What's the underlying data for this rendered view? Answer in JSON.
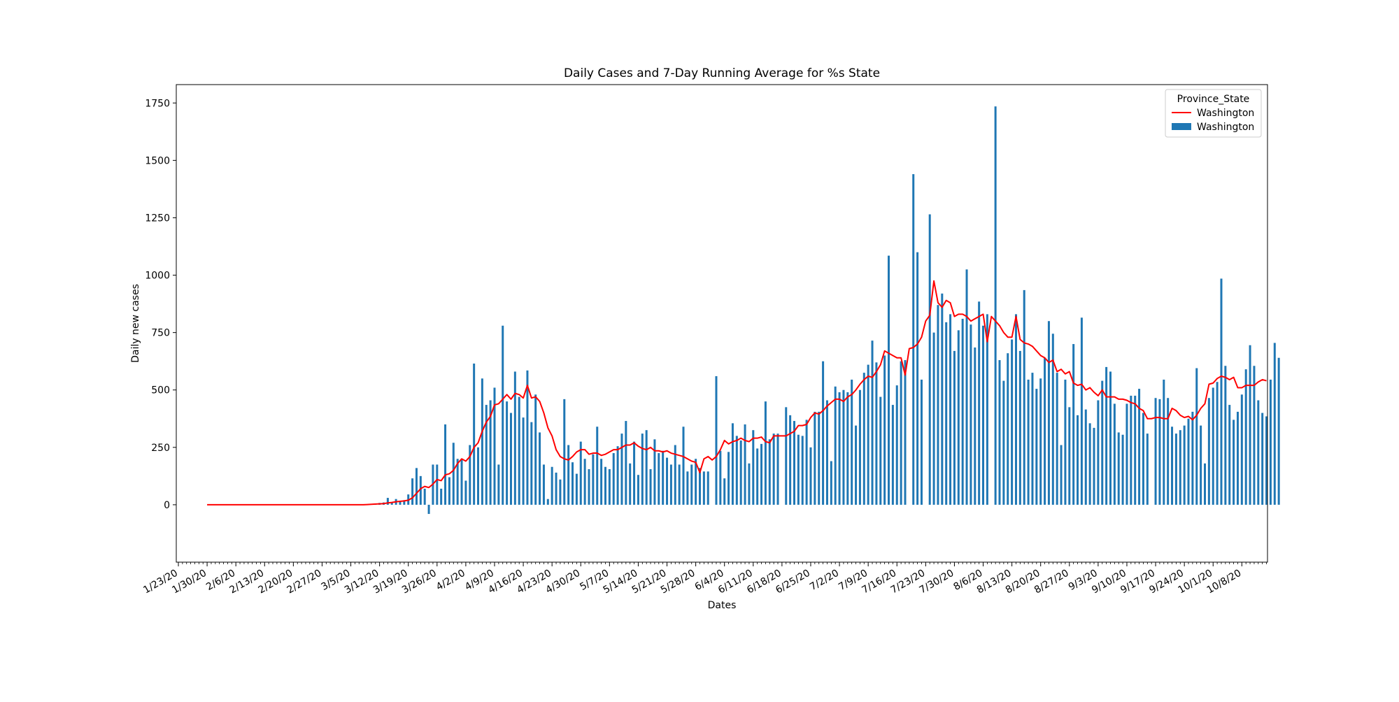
{
  "chart_data": {
    "type": "bar",
    "title": "Daily Cases and 7-Day Running Average for %s State",
    "xlabel": "Dates",
    "ylabel": "Daily new cases",
    "ylim": [
      -250,
      1830
    ],
    "yticks": [
      0,
      250,
      500,
      750,
      1000,
      1250,
      1500,
      1750
    ],
    "x_start_date": "1/23/20",
    "xticks": [
      "1/23/20",
      "1/30/20",
      "2/6/20",
      "2/13/20",
      "2/20/20",
      "2/27/20",
      "3/5/20",
      "3/12/20",
      "3/19/20",
      "3/26/20",
      "4/2/20",
      "4/9/20",
      "4/16/20",
      "4/23/20",
      "4/30/20",
      "5/7/20",
      "5/14/20",
      "5/21/20",
      "5/28/20",
      "6/4/20",
      "6/11/20",
      "6/18/20",
      "6/25/20",
      "7/2/20",
      "7/9/20",
      "7/16/20",
      "7/23/20",
      "7/30/20",
      "8/6/20",
      "8/13/20",
      "8/20/20",
      "8/27/20",
      "9/3/20",
      "9/10/20",
      "9/17/20",
      "9/24/20",
      "10/1/20",
      "10/8/20"
    ],
    "grid": false,
    "legend": {
      "title": "Province_State",
      "placement": "top-right",
      "entries": [
        {
          "label": "Washington",
          "kind": "line",
          "color": "#ff0000"
        },
        {
          "label": "Washington",
          "kind": "bar",
          "color": "#1f77b4"
        }
      ]
    },
    "series": [
      {
        "name": "Washington",
        "kind": "bar",
        "color": "#1f77b4",
        "start_date": "1/30/20",
        "values": [
          0,
          0,
          0,
          0,
          0,
          0,
          0,
          0,
          0,
          0,
          0,
          0,
          0,
          0,
          0,
          0,
          0,
          0,
          0,
          0,
          0,
          0,
          0,
          0,
          0,
          0,
          0,
          0,
          0,
          0,
          0,
          0,
          0,
          0,
          0,
          0,
          0,
          0,
          0,
          2,
          3,
          4,
          8,
          10,
          30,
          12,
          25,
          18,
          20,
          45,
          115,
          160,
          125,
          70,
          -40,
          175,
          175,
          70,
          350,
          120,
          270,
          200,
          200,
          105,
          260,
          615,
          250,
          550,
          435,
          455,
          510,
          175,
          780,
          450,
          400,
          580,
          470,
          380,
          585,
          360,
          480,
          315,
          175,
          25,
          165,
          140,
          110,
          460,
          260,
          185,
          135,
          275,
          200,
          155,
          220,
          340,
          200,
          165,
          155,
          225,
          255,
          310,
          365,
          180,
          275,
          130,
          310,
          325,
          155,
          285,
          225,
          235,
          205,
          175,
          260,
          175,
          340,
          145,
          175,
          200,
          160,
          145,
          145,
          0,
          560,
          235,
          115,
          230,
          355,
          300,
          280,
          350,
          180,
          325,
          245,
          265,
          450,
          285,
          310,
          310,
          0,
          425,
          390,
          365,
          305,
          300,
          370,
          250,
          405,
          405,
          625,
          455,
          190,
          515,
          490,
          500,
          490,
          545,
          345,
          500,
          575,
          610,
          715,
          620,
          470,
          650,
          1085,
          435,
          520,
          625,
          630,
          0,
          1440,
          1100,
          545,
          0,
          1265,
          750,
          870,
          920,
          795,
          830,
          670,
          760,
          810,
          1025,
          785,
          685,
          885,
          780,
          830,
          0,
          1735,
          630,
          540,
          660,
          720,
          830,
          670,
          935,
          545,
          575,
          505,
          550,
          640,
          800,
          745,
          575,
          260,
          545,
          425,
          700,
          390,
          815,
          415,
          355,
          335,
          455,
          540,
          600,
          580,
          440,
          315,
          305,
          440,
          475,
          475,
          505,
          400,
          310,
          0,
          465,
          460,
          545,
          465,
          340,
          310,
          325,
          345,
          375,
          405,
          595,
          345,
          180,
          465,
          510,
          535,
          985,
          605,
          435,
          370,
          405,
          480,
          590,
          695,
          605,
          455,
          400,
          385,
          545,
          705,
          640
        ]
      },
      {
        "name": "Washington",
        "kind": "line",
        "color": "#ff0000",
        "start_date": "1/30/20",
        "values": [
          0,
          0,
          0,
          0,
          0,
          0,
          0,
          0,
          0,
          0,
          0,
          0,
          0,
          0,
          0,
          0,
          0,
          0,
          0,
          0,
          0,
          0,
          0,
          0,
          0,
          0,
          0,
          0,
          0,
          0,
          0,
          0,
          0,
          0,
          0,
          0,
          0,
          0,
          0,
          1,
          2,
          3,
          4,
          5,
          8,
          10,
          13,
          15,
          17,
          20,
          30,
          50,
          70,
          80,
          75,
          90,
          110,
          105,
          130,
          135,
          150,
          180,
          200,
          190,
          210,
          250,
          270,
          320,
          360,
          385,
          435,
          440,
          460,
          480,
          460,
          485,
          480,
          465,
          520,
          465,
          470,
          450,
          400,
          335,
          300,
          240,
          210,
          200,
          195,
          210,
          230,
          240,
          240,
          220,
          225,
          225,
          215,
          220,
          230,
          240,
          240,
          250,
          260,
          260,
          270,
          255,
          245,
          240,
          250,
          235,
          235,
          230,
          235,
          225,
          220,
          215,
          210,
          200,
          190,
          185,
          140,
          200,
          210,
          195,
          210,
          240,
          280,
          265,
          275,
          280,
          290,
          280,
          275,
          290,
          290,
          295,
          275,
          270,
          300,
          300,
          300,
          300,
          310,
          320,
          345,
          345,
          350,
          380,
          400,
          395,
          410,
          430,
          445,
          460,
          460,
          450,
          470,
          480,
          500,
          525,
          545,
          560,
          555,
          580,
          610,
          670,
          660,
          650,
          640,
          640,
          565,
          680,
          685,
          700,
          730,
          800,
          825,
          975,
          880,
          860,
          890,
          880,
          820,
          830,
          830,
          820,
          800,
          810,
          820,
          830,
          710,
          820,
          800,
          780,
          750,
          730,
          730,
          820,
          720,
          705,
          700,
          690,
          670,
          650,
          640,
          620,
          630,
          580,
          590,
          570,
          580,
          530,
          520,
          525,
          500,
          510,
          490,
          475,
          500,
          470,
          470,
          470,
          460,
          460,
          455,
          445,
          440,
          420,
          410,
          375,
          375,
          380,
          380,
          375,
          375,
          420,
          410,
          390,
          380,
          385,
          370,
          390,
          420,
          440,
          525,
          530,
          550,
          560,
          555,
          545,
          555,
          510,
          510,
          520,
          520,
          520,
          535,
          545,
          540
        ]
      }
    ]
  }
}
